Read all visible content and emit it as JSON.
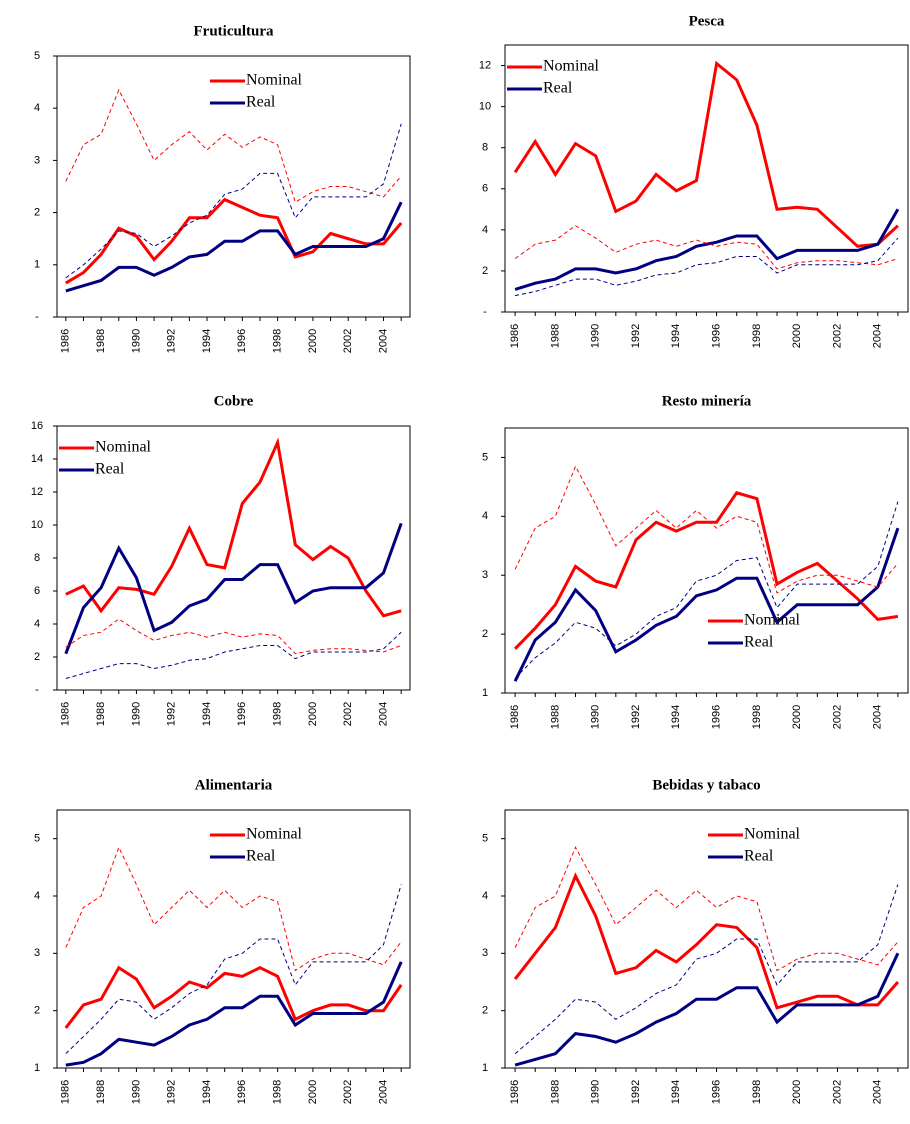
{
  "chart_data": [
    {
      "type": "line",
      "title": "Fruticultura",
      "legend": "upper right",
      "categories": [
        "1986",
        null,
        "1988",
        null,
        "1990",
        null,
        "1992",
        null,
        "1994",
        null,
        "1996",
        null,
        "1998",
        null,
        "2000",
        null,
        "2002",
        null,
        "2004",
        null
      ],
      "ylim": [
        0,
        5
      ],
      "yticks": [
        {
          "value": 0,
          "label": "-"
        },
        1,
        2,
        3,
        4,
        5
      ],
      "series": [
        {
          "name": "Nominal",
          "color": "#ff0000",
          "values": [
            0.65,
            0.85,
            1.2,
            1.7,
            1.55,
            1.1,
            1.45,
            1.9,
            1.9,
            2.25,
            2.1,
            1.95,
            1.9,
            1.15,
            1.25,
            1.6,
            1.5,
            1.4,
            1.4,
            1.8
          ]
        },
        {
          "name": "Real",
          "color": "#000080",
          "values": [
            0.5,
            0.6,
            0.7,
            0.95,
            0.95,
            0.8,
            0.95,
            1.15,
            1.2,
            1.45,
            1.45,
            1.65,
            1.65,
            1.2,
            1.35,
            1.35,
            1.35,
            1.35,
            1.5,
            2.2
          ]
        },
        {
          "color": "#ff0000",
          "dash": true,
          "values": [
            2.6,
            3.3,
            3.5,
            4.35,
            3.7,
            3.0,
            3.3,
            3.55,
            3.2,
            3.5,
            3.25,
            3.45,
            3.3,
            2.2,
            2.4,
            2.5,
            2.5,
            2.4,
            2.3,
            2.7
          ]
        },
        {
          "color": "#000080",
          "dash": true,
          "values": [
            0.75,
            1.0,
            1.3,
            1.65,
            1.6,
            1.35,
            1.55,
            1.8,
            1.95,
            2.35,
            2.45,
            2.75,
            2.75,
            1.9,
            2.3,
            2.3,
            2.3,
            2.3,
            2.55,
            3.7
          ]
        }
      ]
    },
    {
      "type": "line",
      "title": "Pesca",
      "legend": "upper left",
      "categories": [
        "1986",
        null,
        "1988",
        null,
        "1990",
        null,
        "1992",
        null,
        "1994",
        null,
        "1996",
        null,
        "1998",
        null,
        "2000",
        null,
        "2002",
        null,
        "2004",
        null
      ],
      "ylim": [
        0,
        13
      ],
      "yticks": [
        {
          "value": 0,
          "label": "-"
        },
        2,
        4,
        6,
        8,
        10,
        12
      ],
      "series": [
        {
          "name": "Nominal",
          "color": "#ff0000",
          "values": [
            6.8,
            8.3,
            6.7,
            8.2,
            7.6,
            4.9,
            5.4,
            6.7,
            5.9,
            6.4,
            12.1,
            11.3,
            9.1,
            5.0,
            5.1,
            5.0,
            4.1,
            3.2,
            3.3,
            4.2
          ]
        },
        {
          "name": "Real",
          "color": "#000080",
          "values": [
            1.1,
            1.4,
            1.6,
            2.1,
            2.1,
            1.9,
            2.1,
            2.5,
            2.7,
            3.2,
            3.4,
            3.7,
            3.7,
            2.6,
            3.0,
            3.0,
            3.0,
            3.0,
            3.3,
            5.0
          ]
        },
        {
          "color": "#ff0000",
          "dash": true,
          "values": [
            2.6,
            3.3,
            3.5,
            4.2,
            3.6,
            2.9,
            3.3,
            3.5,
            3.2,
            3.5,
            3.2,
            3.4,
            3.3,
            2.1,
            2.4,
            2.5,
            2.5,
            2.4,
            2.3,
            2.6
          ]
        },
        {
          "color": "#000080",
          "dash": true,
          "values": [
            0.8,
            1.0,
            1.3,
            1.6,
            1.6,
            1.3,
            1.5,
            1.8,
            1.9,
            2.3,
            2.4,
            2.7,
            2.7,
            1.9,
            2.3,
            2.3,
            2.3,
            2.3,
            2.5,
            3.6
          ]
        }
      ]
    },
    {
      "type": "line",
      "title": "Cobre",
      "legend": "upper left",
      "categories": [
        "1986",
        null,
        "1988",
        null,
        "1990",
        null,
        "1992",
        null,
        "1994",
        null,
        "1996",
        null,
        "1998",
        null,
        "2000",
        null,
        "2002",
        null,
        "2004",
        null
      ],
      "ylim": [
        0,
        16
      ],
      "yticks": [
        {
          "value": 0,
          "label": "-"
        },
        2,
        4,
        6,
        8,
        10,
        12,
        14,
        16
      ],
      "series": [
        {
          "name": "Nominal",
          "color": "#ff0000",
          "values": [
            5.8,
            6.3,
            4.8,
            6.2,
            6.1,
            5.8,
            7.5,
            9.8,
            7.6,
            7.4,
            11.3,
            12.6,
            15.0,
            8.8,
            7.9,
            8.7,
            8.0,
            6.0,
            4.5,
            4.8
          ]
        },
        {
          "name": "Real",
          "color": "#000080",
          "values": [
            2.2,
            5.0,
            6.2,
            8.6,
            6.8,
            3.6,
            4.1,
            5.1,
            5.5,
            6.7,
            6.7,
            7.6,
            7.6,
            5.3,
            6.0,
            6.2,
            6.2,
            6.2,
            7.1,
            10.1
          ]
        },
        {
          "color": "#ff0000",
          "dash": true,
          "values": [
            2.6,
            3.3,
            3.5,
            4.3,
            3.6,
            3.0,
            3.3,
            3.5,
            3.2,
            3.5,
            3.2,
            3.4,
            3.3,
            2.2,
            2.4,
            2.5,
            2.5,
            2.4,
            2.3,
            2.7
          ]
        },
        {
          "color": "#000080",
          "dash": true,
          "values": [
            0.7,
            1.0,
            1.3,
            1.6,
            1.6,
            1.3,
            1.5,
            1.8,
            1.9,
            2.3,
            2.5,
            2.7,
            2.7,
            1.9,
            2.3,
            2.3,
            2.3,
            2.3,
            2.5,
            3.5
          ]
        }
      ]
    },
    {
      "type": "line",
      "title": "Resto minería",
      "legend": "lower right",
      "categories": [
        "1986",
        null,
        "1988",
        null,
        "1990",
        null,
        "1992",
        null,
        "1994",
        null,
        "1996",
        null,
        "1998",
        null,
        "2000",
        null,
        "2002",
        null,
        "2004",
        null
      ],
      "ylim": [
        1,
        5.5
      ],
      "yticks": [
        1,
        2,
        3,
        4,
        5
      ],
      "series": [
        {
          "name": "Nominal",
          "color": "#ff0000",
          "values": [
            1.75,
            2.1,
            2.5,
            3.15,
            2.9,
            2.8,
            3.6,
            3.9,
            3.75,
            3.9,
            3.9,
            4.4,
            4.3,
            2.85,
            3.05,
            3.2,
            2.9,
            2.6,
            2.25,
            2.3
          ]
        },
        {
          "name": "Real",
          "color": "#000080",
          "values": [
            1.2,
            1.9,
            2.2,
            2.75,
            2.4,
            1.7,
            1.9,
            2.15,
            2.3,
            2.65,
            2.75,
            2.95,
            2.95,
            2.2,
            2.5,
            2.5,
            2.5,
            2.5,
            2.8,
            3.8
          ]
        },
        {
          "color": "#ff0000",
          "dash": true,
          "values": [
            3.1,
            3.8,
            4.0,
            4.85,
            4.2,
            3.5,
            3.8,
            4.1,
            3.8,
            4.1,
            3.8,
            4.0,
            3.9,
            2.7,
            2.9,
            3.0,
            3.0,
            2.9,
            2.8,
            3.2
          ]
        },
        {
          "color": "#000080",
          "dash": true,
          "values": [
            1.25,
            1.6,
            1.85,
            2.2,
            2.1,
            1.8,
            2.0,
            2.3,
            2.45,
            2.9,
            3.0,
            3.25,
            3.3,
            2.45,
            2.85,
            2.85,
            2.85,
            2.85,
            3.15,
            4.25
          ]
        }
      ]
    },
    {
      "type": "line",
      "title": "Alimentaria",
      "legend": "upper right",
      "categories": [
        "1986",
        null,
        "1988",
        null,
        "1990",
        null,
        "1992",
        null,
        "1994",
        null,
        "1996",
        null,
        "1998",
        null,
        "2000",
        null,
        "2002",
        null,
        "2004",
        null
      ],
      "ylim": [
        1,
        5.5
      ],
      "yticks": [
        1,
        2,
        3,
        4,
        5
      ],
      "series": [
        {
          "name": "Nominal",
          "color": "#ff0000",
          "values": [
            1.7,
            2.1,
            2.2,
            2.75,
            2.55,
            2.05,
            2.25,
            2.5,
            2.4,
            2.65,
            2.6,
            2.75,
            2.6,
            1.85,
            2.0,
            2.1,
            2.1,
            2.0,
            2.0,
            2.45
          ]
        },
        {
          "name": "Real",
          "color": "#000080",
          "values": [
            1.05,
            1.1,
            1.25,
            1.5,
            1.45,
            1.4,
            1.55,
            1.75,
            1.85,
            2.05,
            2.05,
            2.25,
            2.25,
            1.75,
            1.95,
            1.95,
            1.95,
            1.95,
            2.15,
            2.85
          ]
        },
        {
          "color": "#ff0000",
          "dash": true,
          "values": [
            3.1,
            3.8,
            4.0,
            4.85,
            4.2,
            3.5,
            3.8,
            4.1,
            3.8,
            4.1,
            3.8,
            4.0,
            3.9,
            2.7,
            2.9,
            3.0,
            3.0,
            2.9,
            2.8,
            3.2
          ]
        },
        {
          "color": "#000080",
          "dash": true,
          "values": [
            1.25,
            1.55,
            1.85,
            2.2,
            2.15,
            1.85,
            2.05,
            2.3,
            2.45,
            2.9,
            3.0,
            3.25,
            3.25,
            2.45,
            2.85,
            2.85,
            2.85,
            2.85,
            3.15,
            4.2
          ]
        }
      ]
    },
    {
      "type": "line",
      "title": "Bebidas y tabaco",
      "legend": "upper right",
      "categories": [
        "1986",
        null,
        "1988",
        null,
        "1990",
        null,
        "1992",
        null,
        "1994",
        null,
        "1996",
        null,
        "1998",
        null,
        "2000",
        null,
        "2002",
        null,
        "2004",
        null
      ],
      "ylim": [
        1,
        5.5
      ],
      "yticks": [
        1,
        2,
        3,
        4,
        5
      ],
      "series": [
        {
          "name": "Nominal",
          "color": "#ff0000",
          "values": [
            2.55,
            3.0,
            3.45,
            4.35,
            3.65,
            2.65,
            2.75,
            3.05,
            2.85,
            3.15,
            3.5,
            3.45,
            3.1,
            2.05,
            2.15,
            2.25,
            2.25,
            2.1,
            2.1,
            2.5
          ]
        },
        {
          "name": "Real",
          "color": "#000080",
          "values": [
            1.05,
            1.15,
            1.25,
            1.6,
            1.55,
            1.45,
            1.6,
            1.8,
            1.95,
            2.2,
            2.2,
            2.4,
            2.4,
            1.8,
            2.1,
            2.1,
            2.1,
            2.1,
            2.25,
            3.0
          ]
        },
        {
          "color": "#ff0000",
          "dash": true,
          "values": [
            3.1,
            3.8,
            4.0,
            4.85,
            4.2,
            3.5,
            3.8,
            4.1,
            3.8,
            4.1,
            3.8,
            4.0,
            3.9,
            2.7,
            2.9,
            3.0,
            3.0,
            2.9,
            2.8,
            3.2
          ]
        },
        {
          "color": "#000080",
          "dash": true,
          "values": [
            1.25,
            1.55,
            1.85,
            2.2,
            2.15,
            1.85,
            2.05,
            2.3,
            2.45,
            2.9,
            3.0,
            3.25,
            3.25,
            2.45,
            2.85,
            2.85,
            2.85,
            2.85,
            3.15,
            4.2
          ]
        }
      ]
    }
  ]
}
